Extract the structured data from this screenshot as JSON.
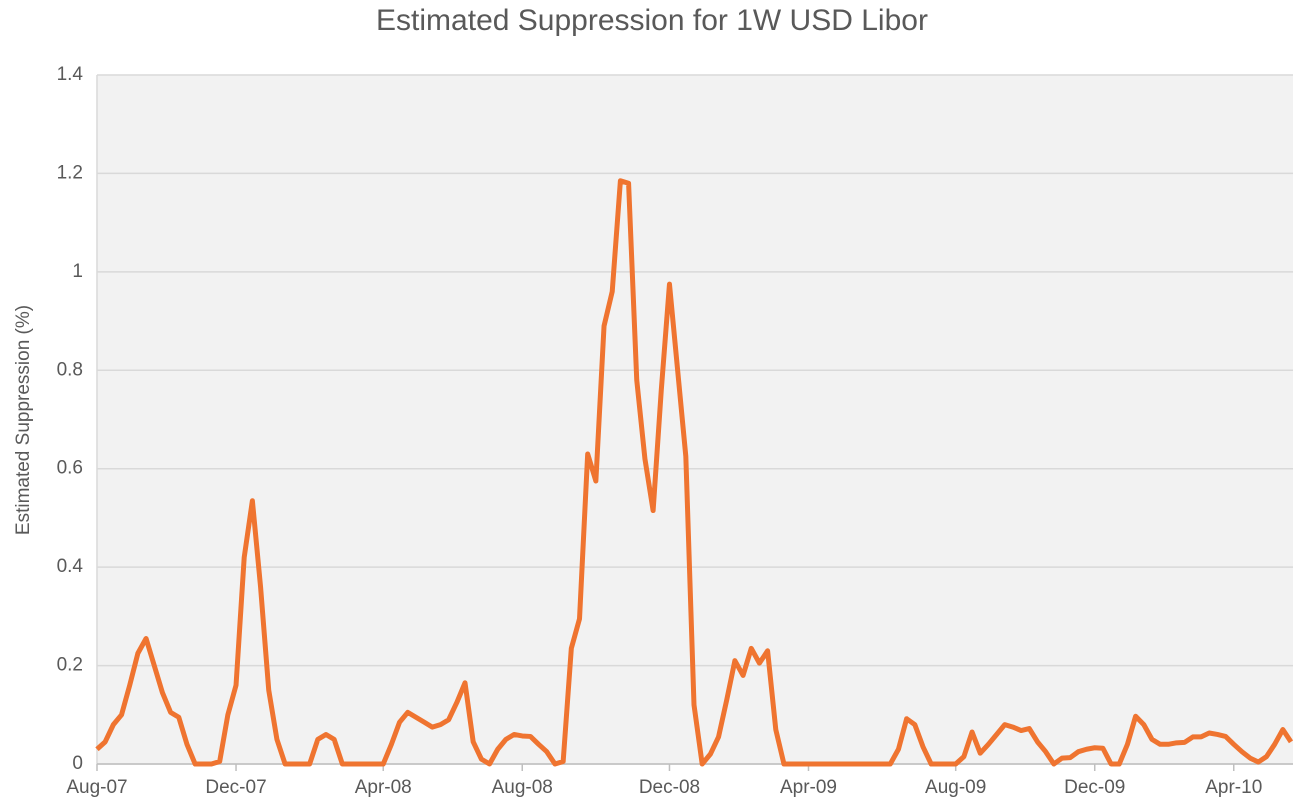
{
  "chart_data": {
    "type": "line",
    "title": "Estimated Suppression for 1W USD Libor",
    "y_label": "Estimated Suppression  (%)",
    "categories": [
      "Aug-07",
      null,
      null,
      null,
      null,
      null,
      null,
      null,
      null,
      null,
      null,
      null,
      null,
      null,
      null,
      null,
      null,
      "Dec-07",
      null,
      null,
      null,
      null,
      null,
      null,
      null,
      null,
      null,
      null,
      null,
      null,
      null,
      null,
      null,
      null,
      null,
      "Apr-08",
      null,
      null,
      null,
      null,
      null,
      null,
      null,
      null,
      null,
      null,
      null,
      null,
      null,
      null,
      null,
      null,
      "Aug-08",
      null,
      null,
      null,
      null,
      null,
      null,
      null,
      null,
      null,
      null,
      null,
      null,
      null,
      null,
      null,
      null,
      null,
      "Dec-08",
      null,
      null,
      null,
      null,
      null,
      null,
      null,
      null,
      null,
      null,
      null,
      null,
      null,
      null,
      null,
      null,
      "Apr-09",
      null,
      null,
      null,
      null,
      null,
      null,
      null,
      null,
      null,
      null,
      null,
      null,
      null,
      null,
      null,
      null,
      null,
      "Aug-09",
      null,
      null,
      null,
      null,
      null,
      null,
      null,
      null,
      null,
      null,
      null,
      null,
      null,
      null,
      null,
      null,
      "Dec-09",
      null,
      null,
      null,
      null,
      null,
      null,
      null,
      null,
      null,
      null,
      null,
      null,
      null,
      null,
      null,
      null,
      "Apr-10",
      null,
      null,
      null,
      null,
      null,
      null,
      null
    ],
    "series": [
      {
        "name": "Estimated Suppression",
        "color": "#ef7430",
        "values": [
          0.03,
          0.045,
          0.08,
          0.1,
          0.16,
          0.225,
          0.255,
          0.2,
          0.145,
          0.105,
          0.095,
          0.04,
          0,
          0,
          0,
          0.005,
          0.1,
          0.16,
          0.42,
          0.535,
          0.36,
          0.15,
          0.05,
          0,
          0,
          0,
          0,
          0.05,
          0.06,
          0.05,
          0,
          0,
          0,
          0,
          0,
          0,
          0.04,
          0.085,
          0.105,
          0.095,
          0.085,
          0.075,
          0.08,
          0.09,
          0.125,
          0.165,
          0.045,
          0.01,
          0,
          0.03,
          0.05,
          0.06,
          0.057,
          0.056,
          0.04,
          0.025,
          0,
          0.005,
          0.235,
          0.295,
          0.63,
          0.575,
          0.89,
          0.96,
          1.185,
          1.18,
          0.78,
          0.62,
          0.515,
          0.76,
          0.975,
          0.8,
          0.625,
          0.12,
          0,
          0.02,
          0.055,
          0.13,
          0.21,
          0.18,
          0.235,
          0.205,
          0.23,
          0.07,
          0,
          0,
          0,
          0,
          0,
          0,
          0,
          0,
          0,
          0,
          0,
          0,
          0,
          0,
          0.03,
          0.092,
          0.08,
          0.035,
          0,
          0,
          0,
          0,
          0.015,
          0.065,
          0.022,
          0.04,
          0.06,
          0.08,
          0.075,
          0.068,
          0.072,
          0.045,
          0.025,
          0,
          0.012,
          0.013,
          0.025,
          0.03,
          0.033,
          0.032,
          0,
          0,
          0.04,
          0.097,
          0.08,
          0.05,
          0.04,
          0.04,
          0.043,
          0.044,
          0.055,
          0.055,
          0.063,
          0.06,
          0.056,
          0.04,
          0.025,
          0.012,
          0.004,
          0.015,
          0.04,
          0.07,
          0.045
        ]
      }
    ],
    "ylim": [
      0,
      1.4
    ],
    "yticks": [
      0,
      0.2,
      0.4,
      0.6,
      0.8,
      1,
      1.2,
      1.4
    ],
    "grid": true
  }
}
